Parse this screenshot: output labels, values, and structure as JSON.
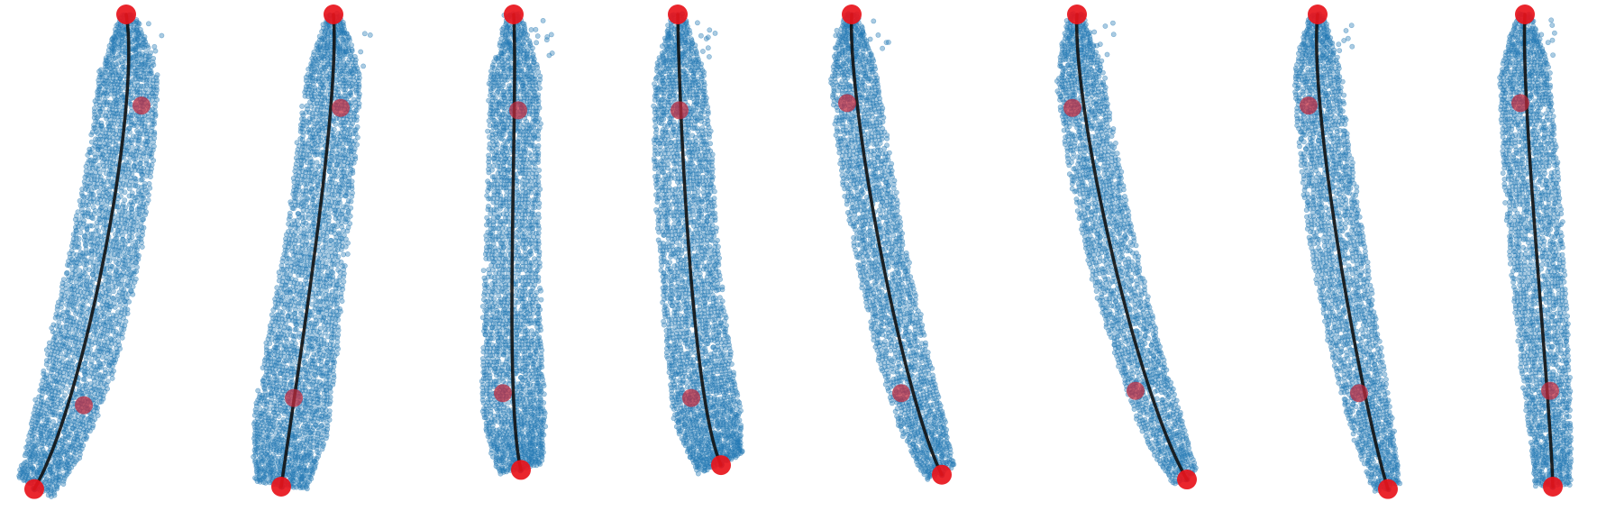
{
  "colors": {
    "points": "#1f77b4",
    "curve": "#111111",
    "endpoints": "#e8141b",
    "midpoints": "#c0283c"
  },
  "chart_data": [
    {
      "type": "scatter",
      "title": "",
      "xlabel": "",
      "ylabel": "",
      "grid": false,
      "legend": "none",
      "control_points": [
        [
          0.0,
          0.0
        ],
        [
          0.17,
          0.19
        ],
        [
          -0.47,
          0.815
        ],
        [
          -1.02,
          0.99
        ]
      ],
      "body_widths": [
        0.12,
        0.7,
        0.78,
        0.85,
        0.85,
        0.7,
        0.45
      ]
    },
    {
      "type": "scatter",
      "title": "",
      "xlabel": "",
      "ylabel": "",
      "grid": false,
      "legend": "none",
      "control_points": [
        [
          0.0,
          0.0
        ],
        [
          0.08,
          0.195
        ],
        [
          -0.44,
          0.8
        ],
        [
          -0.58,
          0.985
        ]
      ],
      "body_widths": [
        0.12,
        0.65,
        0.7,
        0.75,
        0.85,
        0.9,
        0.6
      ]
    },
    {
      "type": "scatter",
      "title": "",
      "xlabel": "",
      "ylabel": "",
      "grid": false,
      "legend": "none",
      "control_points": [
        [
          0.0,
          0.0
        ],
        [
          0.05,
          0.2
        ],
        [
          -0.12,
          0.79
        ],
        [
          0.08,
          0.95
        ]
      ],
      "body_widths": [
        0.12,
        0.6,
        0.6,
        0.65,
        0.7,
        0.75,
        0.5
      ]
    },
    {
      "type": "scatter",
      "title": "",
      "xlabel": "",
      "ylabel": "",
      "grid": false,
      "legend": "none",
      "control_points": [
        [
          0.0,
          0.0
        ],
        [
          0.02,
          0.2
        ],
        [
          0.15,
          0.8
        ],
        [
          0.48,
          0.94
        ]
      ],
      "body_widths": [
        0.12,
        0.6,
        0.7,
        0.7,
        0.75,
        0.8,
        0.55
      ]
    },
    {
      "type": "scatter",
      "title": "",
      "xlabel": "",
      "ylabel": "",
      "grid": false,
      "legend": "none",
      "control_points": [
        [
          0.0,
          0.0
        ],
        [
          -0.05,
          0.185
        ],
        [
          0.55,
          0.79
        ],
        [
          1.0,
          0.96
        ]
      ],
      "body_widths": [
        0.12,
        0.55,
        0.6,
        0.6,
        0.6,
        0.55,
        0.35
      ]
    },
    {
      "type": "scatter",
      "title": "",
      "xlabel": "",
      "ylabel": "",
      "grid": false,
      "legend": "none",
      "control_points": [
        [
          0.0,
          0.0
        ],
        [
          -0.05,
          0.195
        ],
        [
          0.65,
          0.785
        ],
        [
          1.22,
          0.97
        ]
      ],
      "body_widths": [
        0.12,
        0.55,
        0.6,
        0.6,
        0.55,
        0.5,
        0.3
      ]
    },
    {
      "type": "scatter",
      "title": "",
      "xlabel": "",
      "ylabel": "",
      "grid": false,
      "legend": "none",
      "control_points": [
        [
          0.0,
          0.0
        ],
        [
          -0.1,
          0.19
        ],
        [
          0.46,
          0.79
        ],
        [
          0.78,
          0.99
        ]
      ],
      "body_widths": [
        0.12,
        0.55,
        0.6,
        0.65,
        0.6,
        0.5,
        0.3
      ]
    },
    {
      "type": "scatter",
      "title": "",
      "xlabel": "",
      "ylabel": "",
      "grid": false,
      "legend": "none",
      "control_points": [
        [
          0.0,
          0.0
        ],
        [
          -0.05,
          0.185
        ],
        [
          0.28,
          0.785
        ],
        [
          0.31,
          0.985
        ]
      ],
      "body_widths": [
        0.12,
        0.6,
        0.65,
        0.65,
        0.6,
        0.5,
        0.4
      ]
    }
  ]
}
